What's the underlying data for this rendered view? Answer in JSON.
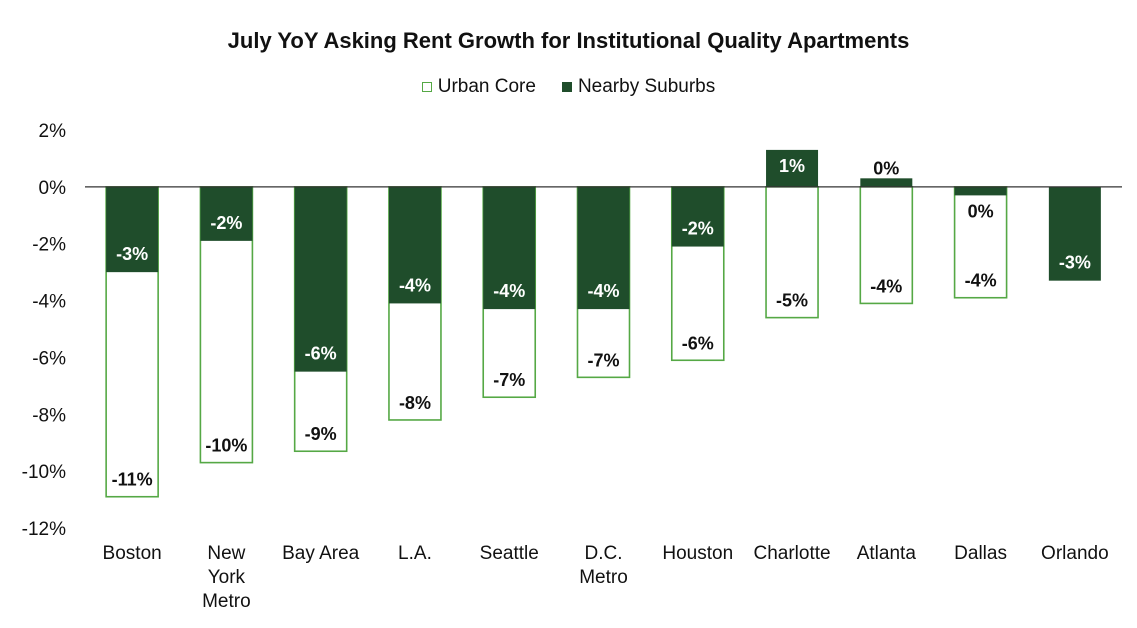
{
  "chart_data": {
    "type": "bar",
    "title": "July YoY Asking Rent Growth for Institutional Quality Apartments",
    "xlabel": "",
    "ylabel": "",
    "ylim": [
      -12,
      2
    ],
    "y_ticks": [
      "2%",
      "0%",
      "-2%",
      "-4%",
      "-6%",
      "-8%",
      "-10%",
      "-12%"
    ],
    "y_tick_values": [
      2,
      0,
      -2,
      -4,
      -6,
      -8,
      -10,
      -12
    ],
    "legend_position": "top-center",
    "grid": false,
    "categories": [
      "Boston",
      "New York Metro",
      "Bay Area",
      "L.A.",
      "Seattle",
      "D.C. Metro",
      "Houston",
      "Charlotte",
      "Atlanta",
      "Dallas",
      "Orlando"
    ],
    "category_lines": [
      [
        "Boston"
      ],
      [
        "New",
        "York",
        "Metro"
      ],
      [
        "Bay Area"
      ],
      [
        "L.A."
      ],
      [
        "Seattle"
      ],
      [
        "D.C.",
        "Metro"
      ],
      [
        "Houston"
      ],
      [
        "Charlotte"
      ],
      [
        "Atlanta"
      ],
      [
        "Dallas"
      ],
      [
        "Orlando"
      ]
    ],
    "series": [
      {
        "name": "Urban Core",
        "color": "#55a845",
        "style": "outline",
        "values": [
          -10.9,
          -9.7,
          -9.3,
          -8.2,
          -7.4,
          -6.7,
          -6.1,
          -4.6,
          -4.1,
          -3.9,
          null
        ],
        "labels": [
          "-11%",
          "-10%",
          "-9%",
          "-8%",
          "-7%",
          "-7%",
          "-6%",
          "-5%",
          "-4%",
          "-4%",
          ""
        ]
      },
      {
        "name": "Nearby Suburbs",
        "color": "#1f4d2b",
        "style": "filled",
        "values": [
          -3.0,
          -1.9,
          -6.5,
          -4.1,
          -4.3,
          -4.3,
          -2.1,
          1.3,
          0.3,
          -0.3,
          -3.3
        ],
        "labels": [
          "-3%",
          "-2%",
          "-6%",
          "-4%",
          "-4%",
          "-4%",
          "-2%",
          "1%",
          "0%",
          "0%",
          "-3%"
        ]
      }
    ]
  }
}
